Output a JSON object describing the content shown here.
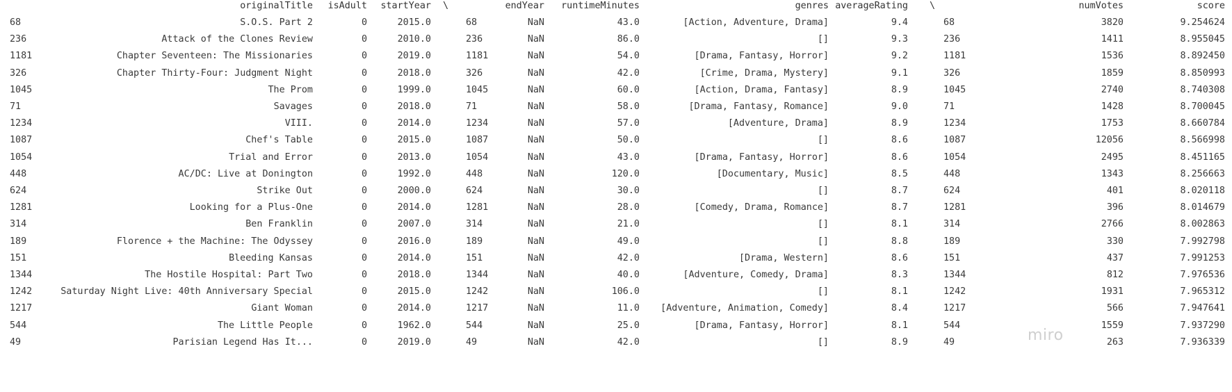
{
  "table": {
    "headers": {
      "originalTitle": "originalTitle",
      "isAdult": "isAdult",
      "startYear": "startYear",
      "sep1": "\\",
      "endYear": "endYear",
      "runtimeMinutes": "runtimeMinutes",
      "genres": "genres",
      "averageRating": "averageRating",
      "sep2": "\\",
      "numVotes": "numVotes",
      "score": "score"
    },
    "rows": [
      {
        "idx": "68",
        "title": "S.O.S. Part 2",
        "adult": "0",
        "start": "2015.0",
        "idx2": "68",
        "end": "NaN",
        "runtime": "43.0",
        "genres": "[Action, Adventure, Drama]",
        "rating": "9.4",
        "idx3": "68",
        "votes": "3820",
        "score": "9.254624"
      },
      {
        "idx": "236",
        "title": "Attack of the Clones Review",
        "adult": "0",
        "start": "2010.0",
        "idx2": "236",
        "end": "NaN",
        "runtime": "86.0",
        "genres": "[]",
        "rating": "9.3",
        "idx3": "236",
        "votes": "1411",
        "score": "8.955045"
      },
      {
        "idx": "1181",
        "title": "Chapter Seventeen: The Missionaries",
        "adult": "0",
        "start": "2019.0",
        "idx2": "1181",
        "end": "NaN",
        "runtime": "54.0",
        "genres": "[Drama, Fantasy, Horror]",
        "rating": "9.2",
        "idx3": "1181",
        "votes": "1536",
        "score": "8.892450"
      },
      {
        "idx": "326",
        "title": "Chapter Thirty-Four: Judgment Night",
        "adult": "0",
        "start": "2018.0",
        "idx2": "326",
        "end": "NaN",
        "runtime": "42.0",
        "genres": "[Crime, Drama, Mystery]",
        "rating": "9.1",
        "idx3": "326",
        "votes": "1859",
        "score": "8.850993"
      },
      {
        "idx": "1045",
        "title": "The Prom",
        "adult": "0",
        "start": "1999.0",
        "idx2": "1045",
        "end": "NaN",
        "runtime": "60.0",
        "genres": "[Action, Drama, Fantasy]",
        "rating": "8.9",
        "idx3": "1045",
        "votes": "2740",
        "score": "8.740308"
      },
      {
        "idx": "71",
        "title": "Savages",
        "adult": "0",
        "start": "2018.0",
        "idx2": "71",
        "end": "NaN",
        "runtime": "58.0",
        "genres": "[Drama, Fantasy, Romance]",
        "rating": "9.0",
        "idx3": "71",
        "votes": "1428",
        "score": "8.700045"
      },
      {
        "idx": "1234",
        "title": "VIII.",
        "adult": "0",
        "start": "2014.0",
        "idx2": "1234",
        "end": "NaN",
        "runtime": "57.0",
        "genres": "[Adventure, Drama]",
        "rating": "8.9",
        "idx3": "1234",
        "votes": "1753",
        "score": "8.660784"
      },
      {
        "idx": "1087",
        "title": "Chef's Table",
        "adult": "0",
        "start": "2015.0",
        "idx2": "1087",
        "end": "NaN",
        "runtime": "50.0",
        "genres": "[]",
        "rating": "8.6",
        "idx3": "1087",
        "votes": "12056",
        "score": "8.566998"
      },
      {
        "idx": "1054",
        "title": "Trial and Error",
        "adult": "0",
        "start": "2013.0",
        "idx2": "1054",
        "end": "NaN",
        "runtime": "43.0",
        "genres": "[Drama, Fantasy, Horror]",
        "rating": "8.6",
        "idx3": "1054",
        "votes": "2495",
        "score": "8.451165"
      },
      {
        "idx": "448",
        "title": "AC/DC: Live at Donington",
        "adult": "0",
        "start": "1992.0",
        "idx2": "448",
        "end": "NaN",
        "runtime": "120.0",
        "genres": "[Documentary, Music]",
        "rating": "8.5",
        "idx3": "448",
        "votes": "1343",
        "score": "8.256663"
      },
      {
        "idx": "624",
        "title": "Strike Out",
        "adult": "0",
        "start": "2000.0",
        "idx2": "624",
        "end": "NaN",
        "runtime": "30.0",
        "genres": "[]",
        "rating": "8.7",
        "idx3": "624",
        "votes": "401",
        "score": "8.020118"
      },
      {
        "idx": "1281",
        "title": "Looking for a Plus-One",
        "adult": "0",
        "start": "2014.0",
        "idx2": "1281",
        "end": "NaN",
        "runtime": "28.0",
        "genres": "[Comedy, Drama, Romance]",
        "rating": "8.7",
        "idx3": "1281",
        "votes": "396",
        "score": "8.014679"
      },
      {
        "idx": "314",
        "title": "Ben Franklin",
        "adult": "0",
        "start": "2007.0",
        "idx2": "314",
        "end": "NaN",
        "runtime": "21.0",
        "genres": "[]",
        "rating": "8.1",
        "idx3": "314",
        "votes": "2766",
        "score": "8.002863"
      },
      {
        "idx": "189",
        "title": "Florence + the Machine: The Odyssey",
        "adult": "0",
        "start": "2016.0",
        "idx2": "189",
        "end": "NaN",
        "runtime": "49.0",
        "genres": "[]",
        "rating": "8.8",
        "idx3": "189",
        "votes": "330",
        "score": "7.992798"
      },
      {
        "idx": "151",
        "title": "Bleeding Kansas",
        "adult": "0",
        "start": "2014.0",
        "idx2": "151",
        "end": "NaN",
        "runtime": "42.0",
        "genres": "[Drama, Western]",
        "rating": "8.6",
        "idx3": "151",
        "votes": "437",
        "score": "7.991253"
      },
      {
        "idx": "1344",
        "title": "The Hostile Hospital: Part Two",
        "adult": "0",
        "start": "2018.0",
        "idx2": "1344",
        "end": "NaN",
        "runtime": "40.0",
        "genres": "[Adventure, Comedy, Drama]",
        "rating": "8.3",
        "idx3": "1344",
        "votes": "812",
        "score": "7.976536"
      },
      {
        "idx": "1242",
        "title": "Saturday Night Live: 40th Anniversary Special",
        "adult": "0",
        "start": "2015.0",
        "idx2": "1242",
        "end": "NaN",
        "runtime": "106.0",
        "genres": "[]",
        "rating": "8.1",
        "idx3": "1242",
        "votes": "1931",
        "score": "7.965312"
      },
      {
        "idx": "1217",
        "title": "Giant Woman",
        "adult": "0",
        "start": "2014.0",
        "idx2": "1217",
        "end": "NaN",
        "runtime": "11.0",
        "genres": "[Adventure, Animation, Comedy]",
        "rating": "8.4",
        "idx3": "1217",
        "votes": "566",
        "score": "7.947641"
      },
      {
        "idx": "544",
        "title": "The Little People",
        "adult": "0",
        "start": "1962.0",
        "idx2": "544",
        "end": "NaN",
        "runtime": "25.0",
        "genres": "[Drama, Fantasy, Horror]",
        "rating": "8.1",
        "idx3": "544",
        "votes": "1559",
        "score": "7.937290"
      },
      {
        "idx": "49",
        "title": "Parisian Legend Has It...",
        "adult": "0",
        "start": "2019.0",
        "idx2": "49",
        "end": "NaN",
        "runtime": "42.0",
        "genres": "[]",
        "rating": "8.9",
        "idx3": "49",
        "votes": "263",
        "score": "7.936339"
      }
    ]
  },
  "watermark": "miro"
}
